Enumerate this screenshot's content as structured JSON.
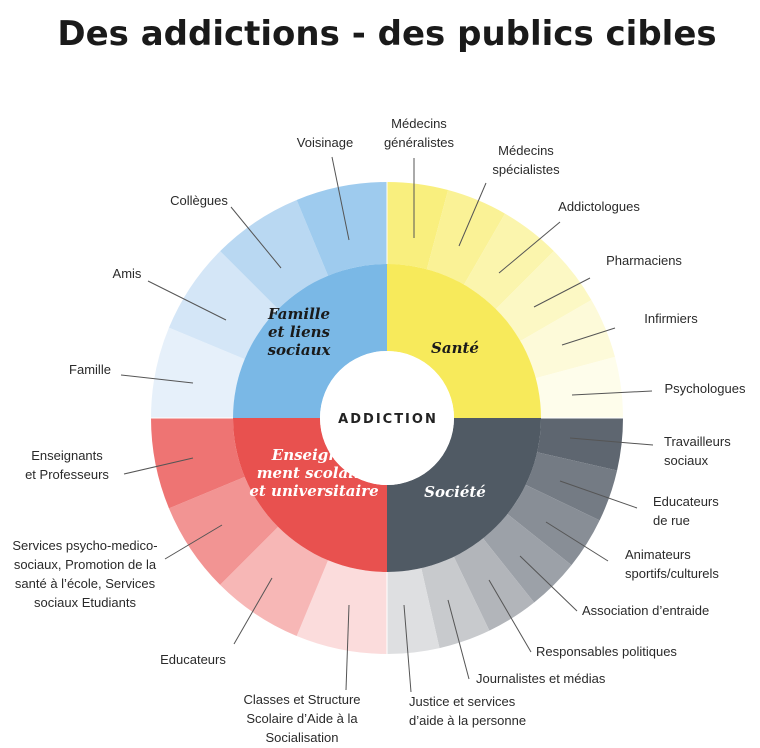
{
  "title": "Des addictions - des publics cibles",
  "center_label": "ADDICTION",
  "categories": [
    {
      "id": "sante",
      "name": [
        "Santé"
      ],
      "color": "#f7ea5b",
      "text_color": "#1a1a1a",
      "segments": [
        {
          "label": [
            "Médecins",
            "généralistes"
          ],
          "color": "#f9ef7e"
        },
        {
          "label": [
            "Médecins",
            "spécialistes"
          ],
          "color": "#faf296"
        },
        {
          "label": [
            "Addictologues"
          ],
          "color": "#fbf5ad"
        },
        {
          "label": [
            "Pharmaciens"
          ],
          "color": "#fcf8c4"
        },
        {
          "label": [
            "Infirmiers"
          ],
          "color": "#fdfad9"
        },
        {
          "label": [
            "Psychologues"
          ],
          "color": "#fefdeb"
        }
      ]
    },
    {
      "id": "societe",
      "name": [
        "Société"
      ],
      "color": "#505a64",
      "text_color": "#ffffff",
      "segments": [
        {
          "label": [
            "Travailleurs",
            "sociaux"
          ],
          "color": "#5e6670"
        },
        {
          "label": [
            "Educateurs",
            "de rue"
          ],
          "color": "#747b84"
        },
        {
          "label": [
            "Animateurs",
            "sportifs/culturels"
          ],
          "color": "#888e96"
        },
        {
          "label": [
            "Association d’entraide"
          ],
          "color": "#9ca1a8"
        },
        {
          "label": [
            "Responsables politiques"
          ],
          "color": "#b2b5ba"
        },
        {
          "label": [
            "Journalistes et médias"
          ],
          "color": "#c8cacd"
        },
        {
          "label": [
            "Justice et services",
            "d’aide à la personne"
          ],
          "color": "#dedfe1"
        }
      ]
    },
    {
      "id": "enseignement",
      "name": [
        "Enseigne–",
        "ment scolaire",
        "et universitaire"
      ],
      "color": "#e8514f",
      "text_color": "#ffffff",
      "segments": [
        {
          "label": [
            "Classes et Structure",
            "Scolaire d’Aide à la",
            "Socialisation"
          ],
          "color": "#fbdcdc"
        },
        {
          "label": [
            "Educateurs"
          ],
          "color": "#f7b7b6"
        },
        {
          "label": [
            "Services psycho-medico-",
            "sociaux, Promotion de la",
            "santé à l’école, Services",
            "sociaux Etudiants"
          ],
          "color": "#f29493"
        },
        {
          "label": [
            "Enseignants",
            "et Professeurs"
          ],
          "color": "#ee7473"
        }
      ]
    },
    {
      "id": "famille",
      "name": [
        "Famille",
        "et liens",
        "sociaux"
      ],
      "color": "#7ab8e6",
      "text_color": "#1a1a1a",
      "segments": [
        {
          "label": [
            "Famille"
          ],
          "color": "#e6f0fa"
        },
        {
          "label": [
            "Amis"
          ],
          "color": "#d4e6f7"
        },
        {
          "label": [
            "Collègues"
          ],
          "color": "#b9d8f2"
        },
        {
          "label": [
            "Voisinage"
          ],
          "color": "#9ecbee"
        }
      ]
    }
  ]
}
